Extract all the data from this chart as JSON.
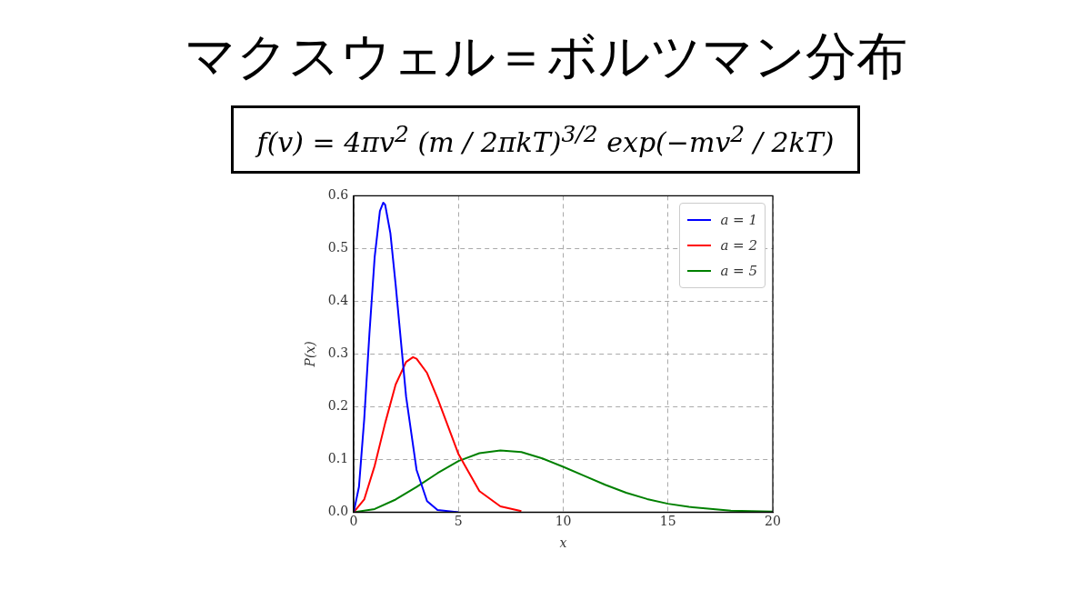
{
  "chart_data": {
    "type": "line",
    "title": "マクスウェル＝ボルツマン分布",
    "subtitle": "f(v) = 4πv$^{2}$ (m / 2πkT)$^{3/2}$ exp(−mv$^{2}$ / 2kT)",
    "xlabel": "x",
    "ylabel": "P(x)",
    "series": [
      {
        "name": "a = 1",
        "color": "#0000ff",
        "x": [
          0,
          0.25,
          0.5,
          0.75,
          1,
          1.25,
          1.41,
          1.5,
          1.75,
          2,
          2.5,
          3,
          3.5,
          4,
          5
        ],
        "values": [
          0,
          0.048,
          0.176,
          0.339,
          0.484,
          0.571,
          0.587,
          0.583,
          0.529,
          0.432,
          0.219,
          0.08,
          0.021,
          0.004,
          0
        ]
      },
      {
        "name": "a = 2",
        "color": "#ff0000",
        "x": [
          0,
          0.5,
          1,
          1.5,
          2,
          2.5,
          2.83,
          3,
          3.5,
          4,
          5,
          6,
          7,
          8
        ],
        "values": [
          0,
          0.024,
          0.088,
          0.169,
          0.242,
          0.285,
          0.294,
          0.291,
          0.264,
          0.216,
          0.11,
          0.04,
          0.011,
          0.002
        ]
      },
      {
        "name": "a = 5",
        "color": "#008000",
        "x": [
          0,
          1,
          2,
          3,
          4,
          5,
          6,
          7,
          8,
          9,
          10,
          11,
          12,
          13,
          14,
          15,
          16,
          18,
          20
        ],
        "values": [
          0,
          0.006,
          0.024,
          0.048,
          0.074,
          0.097,
          0.112,
          0.117,
          0.114,
          0.102,
          0.086,
          0.069,
          0.052,
          0.037,
          0.025,
          0.016,
          0.01,
          0.003,
          0.001
        ]
      }
    ],
    "xlim": [
      0,
      20
    ],
    "xticks": [
      0,
      5,
      10,
      15,
      20
    ],
    "ylim": [
      0,
      0.6
    ],
    "yticks": [
      {
        "value": 0,
        "label": "0.0"
      },
      {
        "value": 0.1,
        "label": "0.1"
      },
      {
        "value": 0.2,
        "label": "0.2"
      },
      {
        "value": 0.3,
        "label": "0.3"
      },
      {
        "value": 0.4,
        "label": "0.4"
      },
      {
        "value": 0.5,
        "label": "0.5"
      },
      {
        "value": 0.6,
        "label": "0.6"
      }
    ],
    "grid": true,
    "legend": "top right",
    "line_style": "solid",
    "marker": "none"
  }
}
